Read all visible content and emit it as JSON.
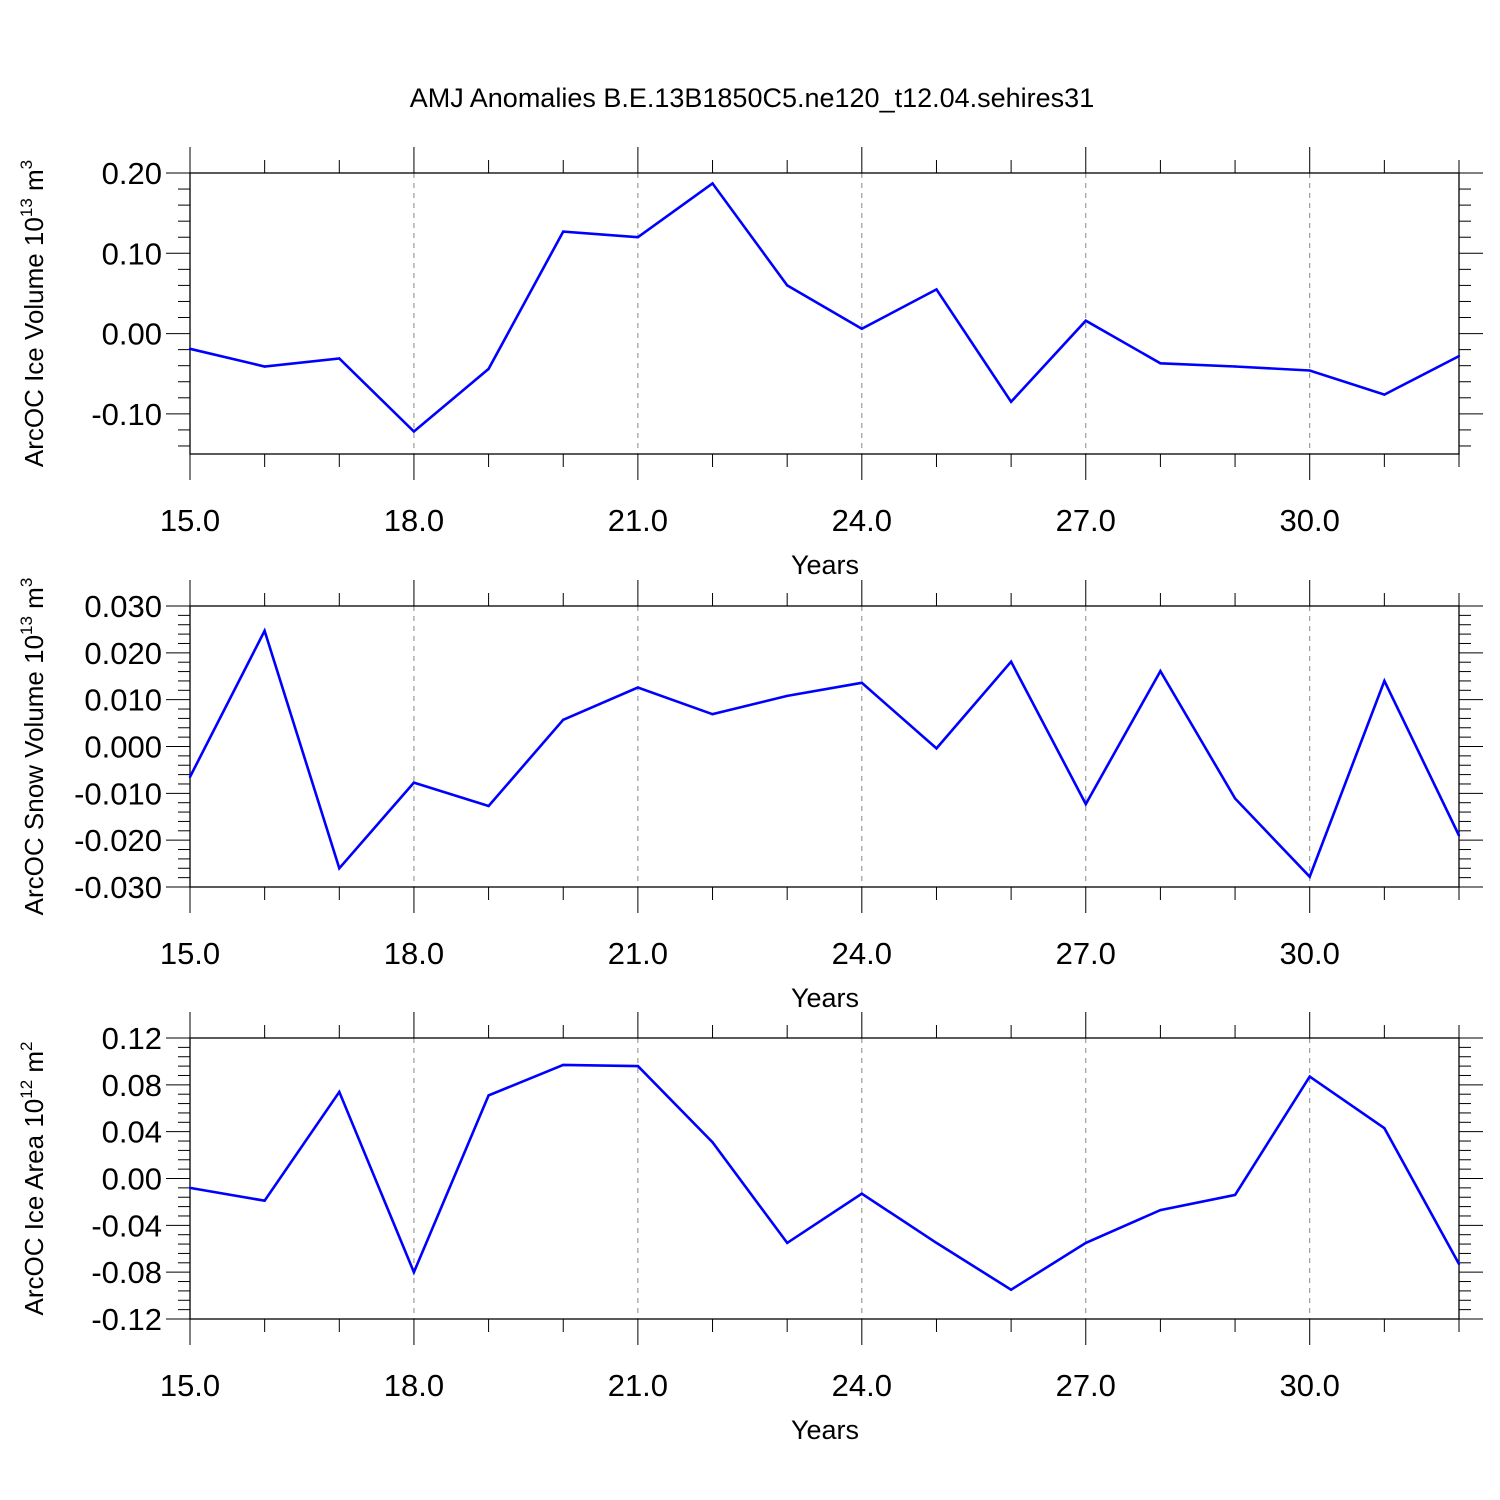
{
  "title": "AMJ Anomalies B.E.13B1850C5.ne120_t12.04.sehires31",
  "line_color": "#0000ff",
  "chart_data": [
    {
      "type": "line",
      "ylabel": "ArcOC Ice Volume 10",
      "ylabel_sup": "13",
      "ylabel_unit": " m",
      "ylabel_unit_sup": "3",
      "xlabel": "Years",
      "xlim": [
        15,
        32
      ],
      "ylim": [
        -0.15,
        0.2
      ],
      "yticks": [
        0.2,
        0.1,
        0.0,
        -0.1
      ],
      "ytick_labels": [
        "0.20",
        "0.10",
        "0.00",
        "-0.10"
      ],
      "xticks": [
        15,
        18,
        21,
        24,
        27,
        30
      ],
      "xtick_labels": [
        "15.0",
        "18.0",
        "21.0",
        "24.0",
        "27.0",
        "30.0"
      ],
      "x": [
        15,
        16,
        17,
        18,
        19,
        20,
        21,
        22,
        23,
        24,
        25,
        26,
        27,
        28,
        29,
        30,
        31,
        32
      ],
      "values": [
        -0.019,
        -0.041,
        -0.031,
        -0.122,
        -0.044,
        0.127,
        0.12,
        0.187,
        0.06,
        0.006,
        0.055,
        -0.085,
        0.016,
        -0.037,
        -0.041,
        -0.046,
        -0.076,
        -0.028
      ],
      "grid": "vertical dashed at major x ticks"
    },
    {
      "type": "line",
      "ylabel": "ArcOC Snow Volume 10",
      "ylabel_sup": "13",
      "ylabel_unit": " m",
      "ylabel_unit_sup": "3",
      "xlabel": "Years",
      "xlim": [
        15,
        32
      ],
      "ylim": [
        -0.03,
        0.03
      ],
      "yticks": [
        0.03,
        0.02,
        0.01,
        0.0,
        -0.01,
        -0.02,
        -0.03
      ],
      "ytick_labels": [
        "0.030",
        "0.020",
        "0.010",
        "0.000",
        "-0.010",
        "-0.020",
        "-0.030"
      ],
      "xticks": [
        15,
        18,
        21,
        24,
        27,
        30
      ],
      "xtick_labels": [
        "15.0",
        "18.0",
        "21.0",
        "24.0",
        "27.0",
        "30.0"
      ],
      "x": [
        15,
        16,
        17,
        18,
        19,
        20,
        21,
        22,
        23,
        24,
        25,
        26,
        27,
        28,
        29,
        30,
        31,
        32
      ],
      "values": [
        -0.0065,
        0.0247,
        -0.026,
        -0.0077,
        -0.0127,
        0.0057,
        0.0126,
        0.0069,
        0.0108,
        0.0136,
        -0.0004,
        0.0181,
        -0.0123,
        0.0161,
        -0.0111,
        -0.0278,
        0.014,
        -0.019
      ],
      "grid": "vertical dashed at major x ticks"
    },
    {
      "type": "line",
      "ylabel": "ArcOC Ice Area 10",
      "ylabel_sup": "12",
      "ylabel_unit": " m",
      "ylabel_unit_sup": "2",
      "xlabel": "Years",
      "xlim": [
        15,
        32
      ],
      "ylim": [
        -0.12,
        0.12
      ],
      "yticks": [
        0.12,
        0.08,
        0.04,
        0.0,
        -0.04,
        -0.08,
        -0.12
      ],
      "ytick_labels": [
        "0.12",
        "0.08",
        "0.04",
        "0.00",
        "-0.04",
        "-0.08",
        "-0.12"
      ],
      "xticks": [
        15,
        18,
        21,
        24,
        27,
        30
      ],
      "xtick_labels": [
        "15.0",
        "18.0",
        "21.0",
        "24.0",
        "27.0",
        "30.0"
      ],
      "x": [
        15,
        16,
        17,
        18,
        19,
        20,
        21,
        22,
        23,
        24,
        25,
        26,
        27,
        28,
        29,
        30,
        31,
        32
      ],
      "values": [
        -0.008,
        -0.019,
        0.074,
        -0.08,
        0.071,
        0.097,
        0.096,
        0.031,
        -0.055,
        -0.013,
        -0.055,
        -0.095,
        -0.055,
        -0.027,
        -0.014,
        0.087,
        0.043,
        -0.073
      ],
      "grid": "vertical dashed at major x ticks"
    }
  ]
}
